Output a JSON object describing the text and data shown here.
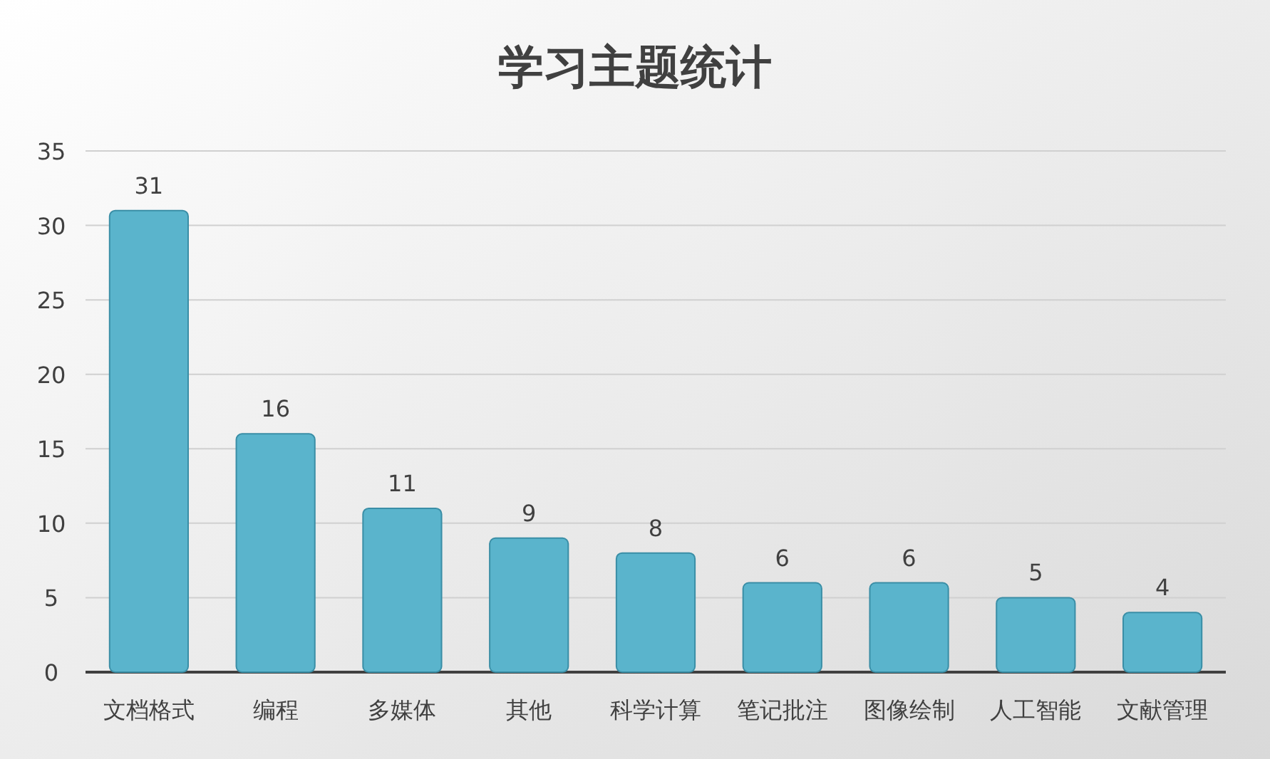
{
  "chart_data": {
    "type": "bar",
    "title": "学习主题统计",
    "categories": [
      "文档格式",
      "编程",
      "多媒体",
      "其他",
      "科学计算",
      "笔记批注",
      "图像绘制",
      "人工智能",
      "文献管理"
    ],
    "values": [
      31,
      16,
      11,
      9,
      8,
      6,
      6,
      5,
      4
    ],
    "color": "#5ab4cc",
    "ylim": [
      0,
      35
    ],
    "yticks": [
      0,
      5,
      10,
      15,
      20,
      25,
      30,
      35
    ],
    "grid": "y",
    "data_labels": true
  }
}
